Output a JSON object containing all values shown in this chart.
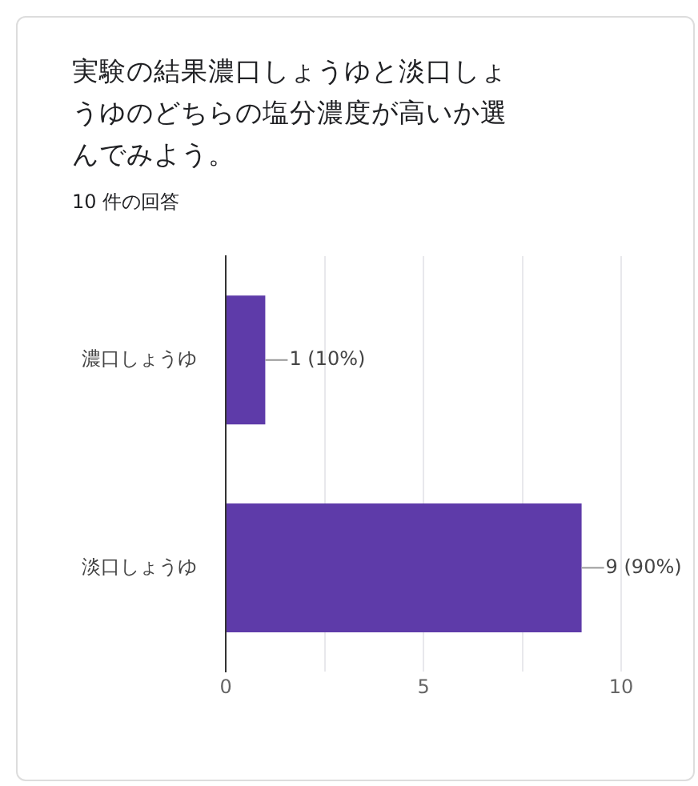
{
  "chart_data": {
    "type": "bar",
    "orientation": "horizontal",
    "title": "実験の結果濃口しょうゆと淡口しょうゆのどちらの塩分濃度が高いか選んでみよう。",
    "subtitle": "10 件の回答",
    "categories": [
      "濃口しょうゆ",
      "淡口しょうゆ"
    ],
    "values": [
      1,
      9
    ],
    "value_labels": [
      "1 (10%)",
      "9 (90%)"
    ],
    "color": "#5e3ba9",
    "xlim": [
      0,
      10
    ],
    "xticks": [
      0,
      {
        "value": 2.5,
        "label": null
      },
      5,
      {
        "value": 7.5,
        "label": null
      },
      10
    ],
    "grid": "x",
    "legend": false
  }
}
